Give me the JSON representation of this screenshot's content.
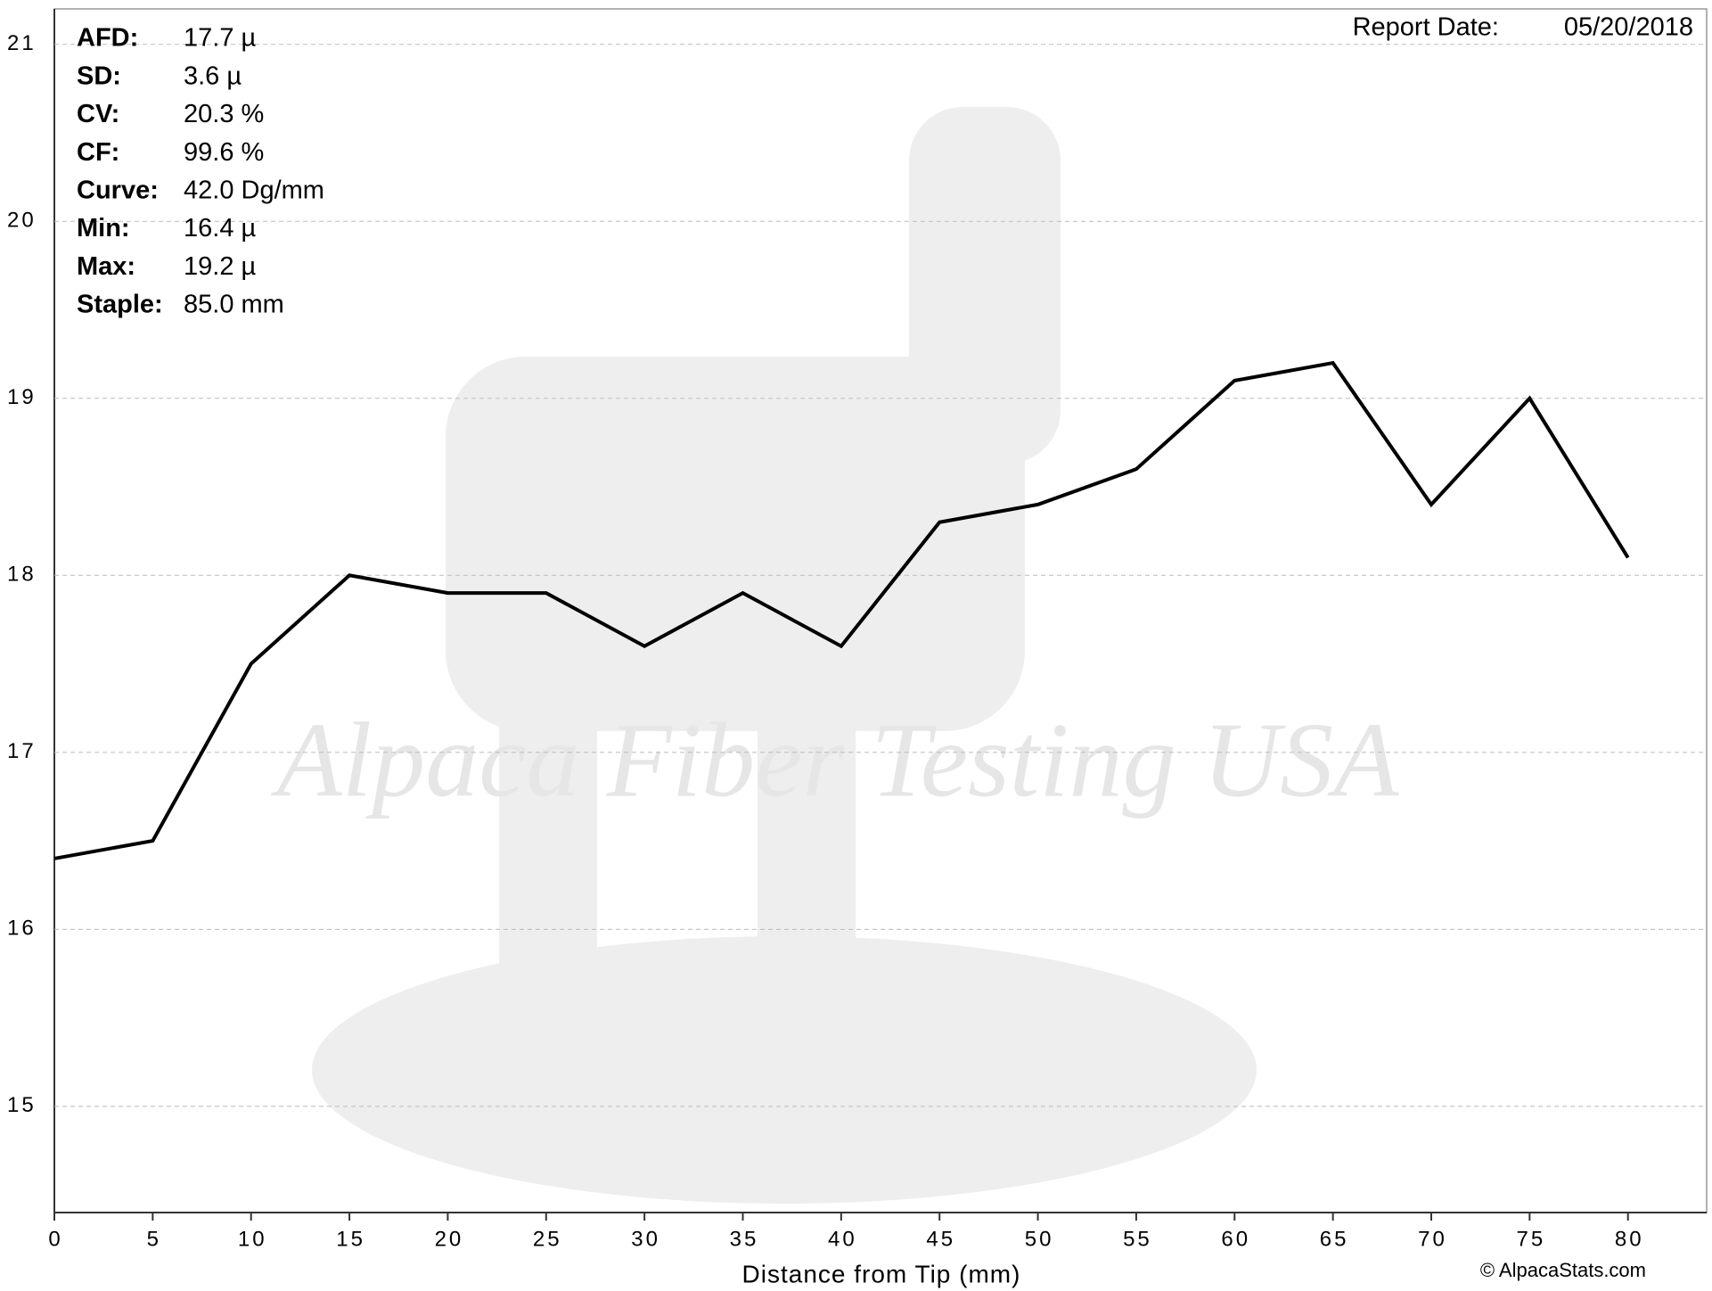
{
  "chart_data": {
    "type": "line",
    "x_label": "Distance from Tip (mm)",
    "x": [
      0,
      5,
      10,
      15,
      20,
      25,
      30,
      35,
      40,
      45,
      50,
      55,
      60,
      65,
      70,
      75,
      80
    ],
    "series": [
      {
        "color": "#000000",
        "values": [
          16.4,
          16.5,
          17.5,
          18.0,
          17.9,
          17.9,
          17.6,
          17.9,
          17.6,
          18.3,
          18.4,
          18.6,
          19.1,
          19.2,
          18.4,
          19.0,
          18.1
        ]
      }
    ],
    "xlim": [
      0,
      84
    ],
    "ylim": [
      14.4,
      21.2
    ],
    "xticks": [
      0,
      5,
      10,
      15,
      20,
      25,
      30,
      35,
      40,
      45,
      50,
      55,
      60,
      65,
      70,
      75,
      80
    ],
    "yticks": [
      15,
      16,
      17,
      18,
      19,
      20,
      21
    ],
    "grid": true,
    "watermark": "Alpaca Fiber Testing USA",
    "report_date_label": "Report Date:",
    "report_date": "05/20/2018",
    "copyright": "© AlpacaStats.com",
    "stats": [
      {
        "label": "AFD:",
        "value": "17.7 µ"
      },
      {
        "label": "SD:",
        "value": "3.6 µ"
      },
      {
        "label": "CV:",
        "value": "20.3 %"
      },
      {
        "label": "CF:",
        "value": "99.6 %"
      },
      {
        "label": "Curve:",
        "value": "42.0 Dg/mm"
      },
      {
        "label": "Min:",
        "value": "16.4 µ"
      },
      {
        "label": "Max:",
        "value": "19.2 µ"
      },
      {
        "label": "Staple:",
        "value": "85.0 mm"
      }
    ]
  }
}
